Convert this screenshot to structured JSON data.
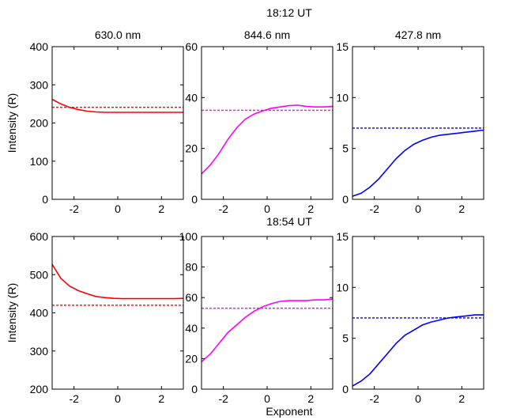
{
  "figure": {
    "xlabel": "Exponent",
    "row_titles": [
      "18:12 UT",
      "18:54 UT"
    ]
  },
  "chart_data": [
    {
      "type": "line",
      "row": 0,
      "col": 0,
      "title": "630.0 nm",
      "ylabel": "Intensity (R)",
      "xlabel": "",
      "xlim": [
        -3,
        3
      ],
      "ylim": [
        0,
        400
      ],
      "xticks": [
        -2,
        0,
        2
      ],
      "yticks": [
        0,
        100,
        200,
        300,
        400
      ],
      "series": [
        {
          "style": "solid",
          "color": "#ff0000",
          "x": [
            -3,
            -2.6,
            -2.2,
            -1.8,
            -1.4,
            -1,
            -0.6,
            -0.2,
            0.2,
            0.6,
            1,
            1.4,
            1.8,
            2.2,
            2.6,
            3
          ],
          "y": [
            262,
            250,
            241,
            235,
            231,
            229,
            228,
            228,
            228,
            228,
            228,
            228,
            228,
            228,
            228,
            228
          ]
        },
        {
          "style": "dashed",
          "color": "#ff0000",
          "x": [
            -3,
            3
          ],
          "y": [
            241,
            241
          ]
        }
      ]
    },
    {
      "type": "line",
      "row": 0,
      "col": 1,
      "title": "844.6 nm",
      "ylabel": "",
      "xlabel": "",
      "xlim": [
        -3,
        3
      ],
      "ylim": [
        0,
        60
      ],
      "xticks": [
        -2,
        0,
        2
      ],
      "yticks": [
        0,
        20,
        40,
        60
      ],
      "series": [
        {
          "style": "solid",
          "color": "#ff00ff",
          "x": [
            -3,
            -2.6,
            -2.2,
            -1.8,
            -1.4,
            -1,
            -0.6,
            -0.2,
            0.2,
            0.6,
            1,
            1.4,
            1.8,
            2.2,
            2.6,
            3
          ],
          "y": [
            10,
            13.5,
            18,
            23.5,
            28,
            31.5,
            33.5,
            34.8,
            35.8,
            36.3,
            36.8,
            37,
            36.5,
            36.3,
            36.3,
            36.5
          ]
        },
        {
          "style": "dashed",
          "color": "#ff00ff",
          "x": [
            -3,
            3
          ],
          "y": [
            35,
            35
          ]
        }
      ]
    },
    {
      "type": "line",
      "row": 0,
      "col": 2,
      "title": "427.8 nm",
      "ylabel": "",
      "xlabel": "",
      "xlim": [
        -3,
        3
      ],
      "ylim": [
        0,
        15
      ],
      "xticks": [
        -2,
        0,
        2
      ],
      "yticks": [
        0,
        5,
        10,
        15
      ],
      "series": [
        {
          "style": "solid",
          "color": "#0000ff",
          "x": [
            -3,
            -2.6,
            -2.2,
            -1.8,
            -1.4,
            -1,
            -0.6,
            -0.2,
            0.2,
            0.6,
            1,
            1.4,
            1.8,
            2.2,
            2.6,
            3
          ],
          "y": [
            0.3,
            0.6,
            1.2,
            2.0,
            3.0,
            4.0,
            4.8,
            5.4,
            5.8,
            6.1,
            6.3,
            6.4,
            6.5,
            6.6,
            6.7,
            6.8
          ]
        },
        {
          "style": "dashed",
          "color": "#0000ff",
          "x": [
            -3,
            3
          ],
          "y": [
            7.0,
            7.0
          ]
        }
      ]
    },
    {
      "type": "line",
      "row": 1,
      "col": 0,
      "title": "",
      "ylabel": "Intensity (R)",
      "xlabel": "",
      "xlim": [
        -3,
        3
      ],
      "ylim": [
        200,
        600
      ],
      "xticks": [
        -2,
        0,
        2
      ],
      "yticks": [
        200,
        300,
        400,
        500,
        600
      ],
      "series": [
        {
          "style": "solid",
          "color": "#ff0000",
          "x": [
            -3,
            -2.6,
            -2.2,
            -1.8,
            -1.4,
            -1,
            -0.6,
            -0.2,
            0.2,
            0.6,
            1,
            1.4,
            1.8,
            2.2,
            2.6,
            3
          ],
          "y": [
            527,
            490,
            470,
            458,
            450,
            443,
            440,
            438,
            437,
            437,
            437,
            437,
            437,
            437,
            437,
            438
          ]
        },
        {
          "style": "dashed",
          "color": "#ff0000",
          "x": [
            -3,
            3
          ],
          "y": [
            420,
            420
          ]
        }
      ]
    },
    {
      "type": "line",
      "row": 1,
      "col": 1,
      "title": "",
      "ylabel": "",
      "xlabel": "",
      "xlim": [
        -3,
        3
      ],
      "ylim": [
        0,
        100
      ],
      "xticks": [
        -2,
        0,
        2
      ],
      "yticks": [
        0,
        20,
        40,
        60,
        80,
        100
      ],
      "series": [
        {
          "style": "solid",
          "color": "#ff00ff",
          "x": [
            -3,
            -2.6,
            -2.2,
            -1.8,
            -1.4,
            -1,
            -0.6,
            -0.2,
            0.2,
            0.6,
            1,
            1.4,
            1.8,
            2.2,
            2.6,
            3
          ],
          "y": [
            18,
            23,
            30,
            37,
            42,
            47,
            51,
            54,
            56,
            57.5,
            58,
            58,
            58,
            58.5,
            58.5,
            59
          ]
        },
        {
          "style": "dashed",
          "color": "#ff00ff",
          "x": [
            -3,
            3
          ],
          "y": [
            53,
            53
          ]
        }
      ]
    },
    {
      "type": "line",
      "row": 1,
      "col": 2,
      "title": "",
      "ylabel": "",
      "xlabel": "",
      "xlim": [
        -3,
        3
      ],
      "ylim": [
        0,
        15
      ],
      "xticks": [
        -2,
        0,
        2
      ],
      "yticks": [
        0,
        5,
        10,
        15
      ],
      "series": [
        {
          "style": "solid",
          "color": "#0000ff",
          "x": [
            -3,
            -2.6,
            -2.2,
            -1.8,
            -1.4,
            -1,
            -0.6,
            -0.2,
            0.2,
            0.6,
            1,
            1.4,
            1.8,
            2.2,
            2.6,
            3
          ],
          "y": [
            0.3,
            0.8,
            1.5,
            2.5,
            3.5,
            4.5,
            5.3,
            5.8,
            6.3,
            6.6,
            6.8,
            7.0,
            7.1,
            7.2,
            7.3,
            7.3
          ]
        },
        {
          "style": "dashed",
          "color": "#0000ff",
          "x": [
            -3,
            3
          ],
          "y": [
            7.0,
            7.0
          ]
        }
      ]
    }
  ]
}
